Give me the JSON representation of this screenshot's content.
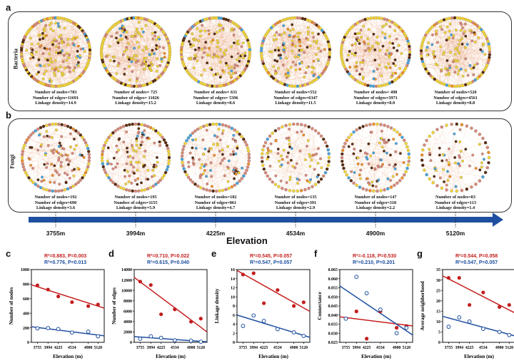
{
  "panels": {
    "a": {
      "label": "a",
      "row_title": "Bacteria"
    },
    "b": {
      "label": "b",
      "row_title": "Fungi"
    }
  },
  "bacteria": [
    {
      "nodes": "Number of nodes=783",
      "edges": "Number of edges=11691",
      "density": "Linkage density=14.9"
    },
    {
      "nodes": "Number of nodes= 725",
      "edges": "Number of edges= 11026",
      "density": "Linkage density=15.2"
    },
    {
      "nodes": "Number of nodes= 631",
      "edges": "Number of edges= 5396",
      "density": "Linkage density=8.6"
    },
    {
      "nodes": "Number of nodes=552",
      "edges": "Number of edges=6347",
      "density": "Linkage density=11.5"
    },
    {
      "nodes": "Number of nodes= 498",
      "edges": "Number of edges=3971",
      "density": "Linkage density=8.0"
    },
    {
      "nodes": "Number of nodes=520",
      "edges": "Number of edges=4561",
      "density": "Linkage density=8.8"
    }
  ],
  "fungi": [
    {
      "nodes": "Number of nodes=192",
      "edges": "Number of edges=690",
      "density": "Linkage density=3.6"
    },
    {
      "nodes": "Number of nodes=195",
      "edges": "Number of edges=1155",
      "density": "Linkage density=5.9"
    },
    {
      "nodes": "Number of nodes=182",
      "edges": "Number of edges=861",
      "density": "Linkage density=4.7"
    },
    {
      "nodes": "Number of nodes=135",
      "edges": "Number of edges=391",
      "density": "Linkage density=2.9"
    },
    {
      "nodes": "Number of nodes=147",
      "edges": "Number of edges=318",
      "density": "Linkage density=2.2"
    },
    {
      "nodes": "Number of nodes=83",
      "edges": "Number of edges=113",
      "density": "Linkage density=1.4"
    }
  ],
  "elevation": {
    "title": "Elevation",
    "labels": [
      "3755m",
      "3994m",
      "4225m",
      "4534m",
      "4900m",
      "5120m"
    ]
  },
  "colors": {
    "bacteria_red": "#c41e1e",
    "fungi_blue": "#1f4fa0",
    "arrow": "#1f4fa0",
    "node_yellow": "#f2d43a",
    "node_brown": "#5a2d12",
    "node_pink": "#d98a7a",
    "node_blue": "#4aa3d9",
    "node_orange": "#ef8f2a",
    "edge_orange": "#e59a6a"
  },
  "chart_data": [
    {
      "type": "scatter",
      "label": "c",
      "bacteria_stat": "R²=0.883, P=0.003",
      "fungi_stat": "R²=0.776, P=0.013",
      "xlabel": "Elevation (m)",
      "ylabel": "Number of nodes",
      "x": [
        3755,
        3994,
        4225,
        4534,
        4900,
        5120
      ],
      "xticks": [
        "3755",
        "3994",
        "4225",
        "4534",
        "4900",
        "5120"
      ],
      "ylim": [
        0,
        1000
      ],
      "yticks": [
        "0",
        "200",
        "400",
        "600",
        "800",
        "1000"
      ],
      "series": [
        {
          "name": "Bacteria",
          "values": [
            783,
            725,
            631,
            552,
            498,
            520
          ],
          "fit": [
            790,
            470
          ]
        },
        {
          "name": "Fungi",
          "values": [
            192,
            195,
            182,
            135,
            147,
            83
          ],
          "fit": [
            215,
            90
          ]
        }
      ]
    },
    {
      "type": "scatter",
      "label": "d",
      "bacteria_stat": "R²=0.710, P=0.022",
      "fungi_stat": "R²=0.615, P=0.040",
      "xlabel": "Elevation (m)",
      "ylabel": "Number of edges",
      "x": [
        3755,
        3994,
        4225,
        4534,
        4900,
        5120
      ],
      "xticks": [
        "3755",
        "3994",
        "4225",
        "4534",
        "4900",
        "5120"
      ],
      "ylim": [
        0,
        14000
      ],
      "yticks": [
        "0",
        "2000",
        "4000",
        "6000",
        "8000",
        "10000",
        "12000",
        "14000"
      ],
      "series": [
        {
          "name": "Bacteria",
          "values": [
            11691,
            11026,
            5396,
            6347,
            3971,
            4561
          ],
          "fit": [
            12500,
            2000
          ]
        },
        {
          "name": "Fungi",
          "values": [
            690,
            1155,
            861,
            391,
            318,
            113
          ],
          "fit": [
            1100,
            100
          ]
        }
      ]
    },
    {
      "type": "scatter",
      "label": "e",
      "bacteria_stat": "R²=0.545, P=0.057",
      "fungi_stat": "R²=0.547, P=0.057",
      "xlabel": "Elevation (m)",
      "ylabel": "Linkage density",
      "x": [
        3755,
        3994,
        4225,
        4534,
        4900,
        5120
      ],
      "xticks": [
        "3755",
        "3994",
        "4225",
        "4534",
        "4900",
        "5120"
      ],
      "ylim": [
        0,
        16
      ],
      "yticks": [
        "0",
        "2",
        "4",
        "6",
        "8",
        "10",
        "12",
        "14",
        "16"
      ],
      "series": [
        {
          "name": "Bacteria",
          "values": [
            14.9,
            15.2,
            8.6,
            11.5,
            8.0,
            8.8
          ],
          "fit": [
            15.8,
            6.8
          ]
        },
        {
          "name": "Fungi",
          "values": [
            3.6,
            5.9,
            4.7,
            2.9,
            2.2,
            1.4
          ],
          "fit": [
            6.0,
            1.1
          ]
        }
      ]
    },
    {
      "type": "scatter",
      "label": "f",
      "bacteria_stat": "R²=-0.118, P=0.530",
      "fungi_stat": "R²=0.210, P=0.201",
      "xlabel": "Elevation (m)",
      "ylabel": "Connectance",
      "x": [
        3755,
        3994,
        4225,
        4534,
        4900,
        5120
      ],
      "xticks": [
        "3755",
        "3994",
        "4225",
        "4534",
        "4900",
        "5120"
      ],
      "ylim": [
        0.025,
        0.065
      ],
      "yticks": [
        "0.025",
        "0.030",
        "0.035",
        "0.040",
        "0.045",
        "0.050",
        "0.055",
        "0.060",
        "0.065"
      ],
      "series": [
        {
          "name": "Bacteria",
          "values": [
            0.038,
            0.042,
            0.027,
            0.042,
            0.033,
            0.034
          ],
          "fit": [
            0.039,
            0.034
          ]
        },
        {
          "name": "Fungi",
          "values": [
            0.038,
            0.061,
            0.052,
            0.043,
            0.03,
            0.033
          ],
          "fit": [
            0.056,
            0.029
          ]
        }
      ]
    },
    {
      "type": "scatter",
      "label": "g",
      "bacteria_stat": "R²=0.544, P=0.058",
      "fungi_stat": "R²=0.547, P=0.057",
      "xlabel": "Elevation (m)",
      "ylabel": "Average neighborhood",
      "x": [
        3755,
        3994,
        4225,
        4534,
        4900,
        5120
      ],
      "xticks": [
        "3755",
        "3994",
        "4225",
        "4534",
        "4900",
        "5120"
      ],
      "ylim": [
        0,
        35
      ],
      "yticks": [
        "0",
        "5",
        "10",
        "15",
        "20",
        "25",
        "30",
        "35"
      ],
      "series": [
        {
          "name": "Bacteria",
          "values": [
            31,
            31,
            18,
            24,
            17,
            18
          ],
          "fit": [
            32,
            14
          ]
        },
        {
          "name": "Fungi",
          "values": [
            7.5,
            12,
            10,
            6.5,
            5,
            3.5
          ],
          "fit": [
            12.5,
            3
          ]
        }
      ]
    }
  ]
}
